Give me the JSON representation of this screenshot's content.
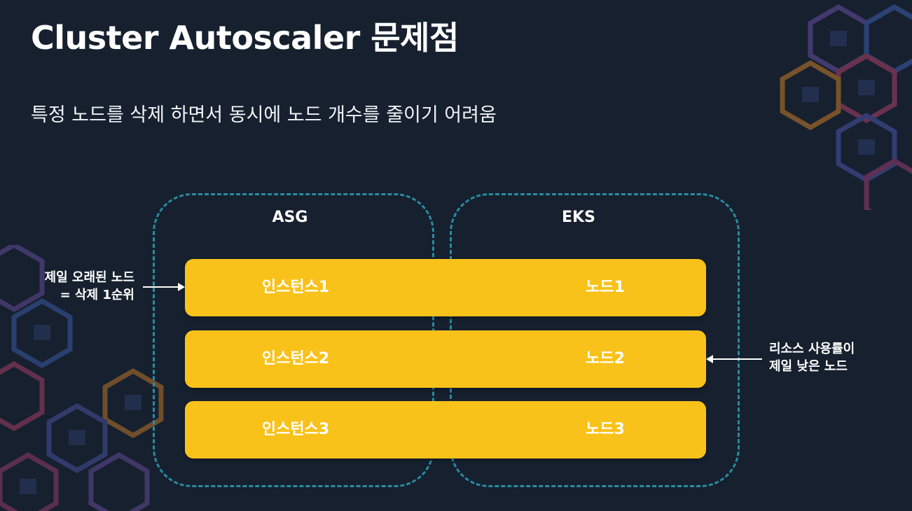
{
  "slide": {
    "title": "Cluster Autoscaler 문제점",
    "subtitle": "특정 노드를 삭제 하면서 동시에 노드 개수를 줄이기 어려움"
  },
  "groups": {
    "asg": "ASG",
    "eks": "EKS"
  },
  "rows": [
    {
      "instance": "인스턴스1",
      "node": "노드1"
    },
    {
      "instance": "인스턴스2",
      "node": "노드2"
    },
    {
      "instance": "인스턴스3",
      "node": "노드3"
    }
  ],
  "annotations": {
    "left": [
      "제일 오래된 노드",
      "= 삭제 1순위"
    ],
    "right": [
      "리소스 사용률이",
      "제일 낮은 노드"
    ]
  },
  "colors": {
    "background": "#16202e",
    "bar": "#f9c21a",
    "dashed_border": "#2a8ba0",
    "text": "#ffffff"
  }
}
